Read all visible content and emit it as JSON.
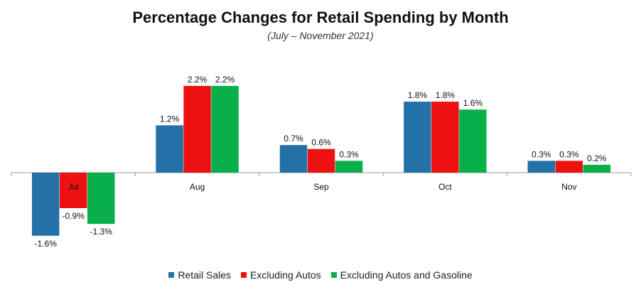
{
  "chart_data": {
    "type": "bar",
    "title": "Percentage Changes for Retail Spending by Month",
    "subtitle": "(July – November 2021)",
    "categories": [
      "Jul",
      "Aug",
      "Sep",
      "Oct",
      "Nov"
    ],
    "series": [
      {
        "name": "Retail Sales",
        "color": "#2471a8",
        "values": [
          -1.6,
          1.2,
          0.7,
          1.8,
          0.3
        ],
        "labels": [
          "-1.6%",
          "1.2%",
          "0.7%",
          "1.8%",
          "0.3%"
        ]
      },
      {
        "name": "Excluding Autos",
        "color": "#ee1111",
        "values": [
          -0.9,
          2.2,
          0.6,
          1.8,
          0.3
        ],
        "labels": [
          "-0.9%",
          "2.2%",
          "0.6%",
          "1.8%",
          "0.3%"
        ]
      },
      {
        "name": "Excluding Autos and Gasoline",
        "color": "#09b04a",
        "values": [
          -1.3,
          2.2,
          0.3,
          1.6,
          0.2
        ],
        "labels": [
          "-1.3%",
          "2.2%",
          "0.3%",
          "1.6%",
          "0.2%"
        ]
      }
    ],
    "ylim": [
      -1.8,
      2.5
    ],
    "xlabel": "",
    "ylabel": "",
    "legend_position": "bottom"
  }
}
